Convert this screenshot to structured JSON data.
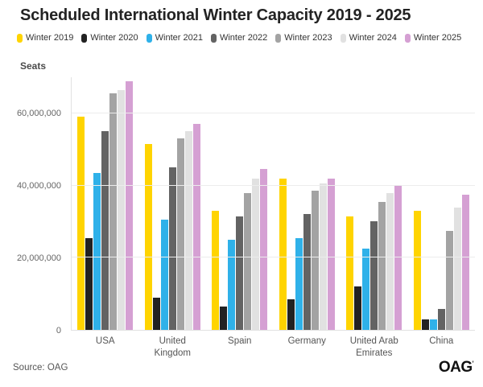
{
  "title": "Scheduled International Winter Capacity 2019 - 2025",
  "y_axis_title": "Seats",
  "source_text": "Source: OAG",
  "logo_text": "OAG",
  "logo_mark": "'",
  "colors": {
    "winter_2019": "#FFD400",
    "winter_2020": "#222222",
    "winter_2021": "#2FB1E9",
    "winter_2022": "#636363",
    "winter_2023": "#A3A3A3",
    "winter_2024": "#E1E1E1",
    "winter_2025": "#D5A0D3",
    "gridline": "#ececec",
    "title_text": "#232323"
  },
  "chart_data": {
    "type": "bar",
    "title": "Scheduled International Winter Capacity 2019 - 2025",
    "xlabel": "",
    "ylabel": "Seats",
    "ylim": [
      0,
      70000000
    ],
    "yticks": [
      0,
      20000000,
      40000000,
      60000000
    ],
    "grid": true,
    "legend_position": "top",
    "categories": [
      "USA",
      "United Kingdom",
      "Spain",
      "Germany",
      "United Arab Emirates",
      "China"
    ],
    "series": [
      {
        "name": "Winter 2019",
        "color": "#FFD400",
        "values": [
          59000000,
          51500000,
          33000000,
          42000000,
          31500000,
          33000000
        ]
      },
      {
        "name": "Winter 2020",
        "color": "#222222",
        "values": [
          25500000,
          9000000,
          6500000,
          8500000,
          12000000,
          3000000
        ]
      },
      {
        "name": "Winter 2021",
        "color": "#2FB1E9",
        "values": [
          43500000,
          30500000,
          25000000,
          25500000,
          22500000,
          2800000
        ]
      },
      {
        "name": "Winter 2022",
        "color": "#636363",
        "values": [
          55000000,
          45000000,
          31500000,
          32000000,
          30000000,
          5800000
        ]
      },
      {
        "name": "Winter 2023",
        "color": "#A3A3A3",
        "values": [
          65500000,
          53000000,
          38000000,
          38500000,
          35500000,
          27500000
        ]
      },
      {
        "name": "Winter 2024",
        "color": "#E1E1E1",
        "values": [
          66500000,
          55000000,
          42000000,
          40500000,
          38000000,
          34000000
        ]
      },
      {
        "name": "Winter 2025",
        "color": "#D5A0D3",
        "values": [
          69000000,
          57000000,
          44500000,
          42000000,
          40000000,
          37500000
        ]
      }
    ]
  }
}
